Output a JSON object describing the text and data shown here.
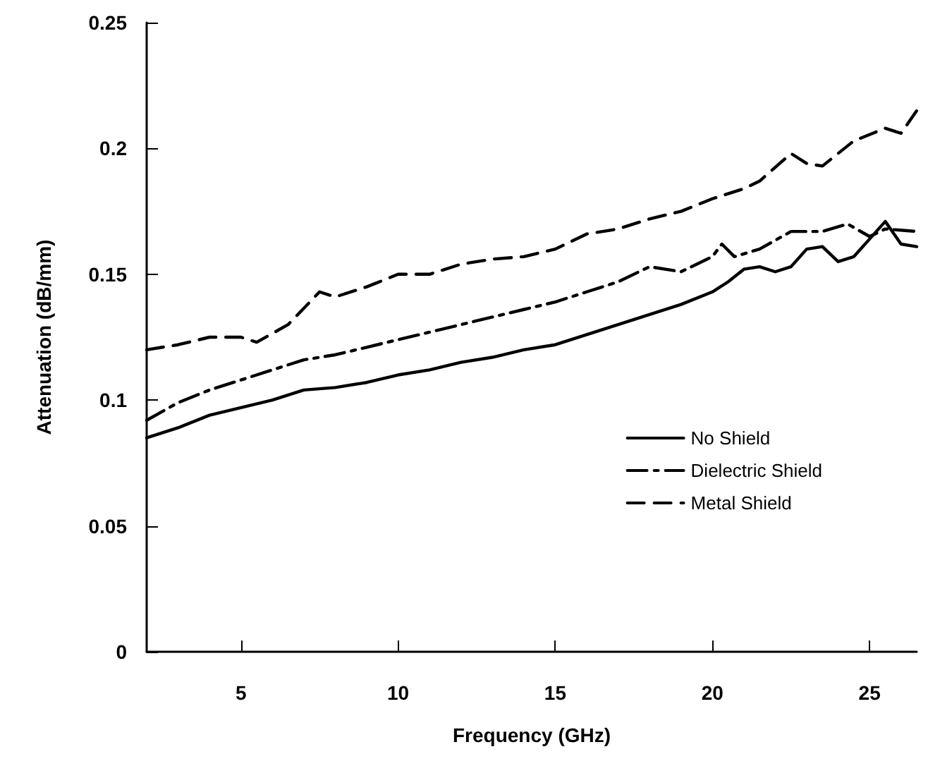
{
  "chart_data": {
    "type": "line",
    "xlabel": "Frequency (GHz)",
    "ylabel": "Attenuation (dB/mm)",
    "xlim": [
      2,
      26.5
    ],
    "xticks": [
      5,
      10,
      15,
      20,
      25
    ],
    "ylim": [
      0,
      0.25
    ],
    "yticks": [
      0,
      0.05,
      0.1,
      0.15,
      0.2,
      0.25
    ],
    "grid": false,
    "legend": "bottom right",
    "marker": "none",
    "series": [
      {
        "name": "No Shield",
        "color": "#000000",
        "line_style": "solid",
        "x": [
          2,
          3,
          4,
          5,
          6,
          7,
          8,
          9,
          10,
          11,
          12,
          13,
          14,
          15,
          16,
          17,
          18,
          19,
          20,
          20.5,
          21,
          21.5,
          22,
          22.5,
          23,
          23.5,
          24,
          24.5,
          25,
          25.5,
          26,
          26.5
        ],
        "values": [
          0.085,
          0.089,
          0.094,
          0.097,
          0.1,
          0.104,
          0.105,
          0.107,
          0.11,
          0.112,
          0.115,
          0.117,
          0.12,
          0.122,
          0.126,
          0.13,
          0.134,
          0.138,
          0.143,
          0.147,
          0.152,
          0.153,
          0.151,
          0.153,
          0.16,
          0.161,
          0.155,
          0.157,
          0.164,
          0.171,
          0.162,
          0.161
        ]
      },
      {
        "name": "Dielectric Shield",
        "color": "#000000",
        "line_style": "dashdot",
        "x": [
          2,
          3,
          4,
          5,
          6,
          7,
          8,
          9,
          10,
          11,
          12,
          13,
          14,
          15,
          16,
          17,
          18,
          19,
          20,
          20.3,
          20.7,
          21.5,
          22.5,
          23.5,
          24.3,
          25,
          25.5,
          26.5
        ],
        "values": [
          0.092,
          0.099,
          0.104,
          0.108,
          0.112,
          0.116,
          0.118,
          0.121,
          0.124,
          0.127,
          0.13,
          0.133,
          0.136,
          0.139,
          0.143,
          0.147,
          0.153,
          0.151,
          0.157,
          0.162,
          0.157,
          0.16,
          0.167,
          0.167,
          0.17,
          0.165,
          0.168,
          0.167
        ]
      },
      {
        "name": "Metal Shield",
        "color": "#000000",
        "line_style": "dashed",
        "x": [
          2,
          3,
          4,
          5,
          5.5,
          6.5,
          7.5,
          8,
          9,
          10,
          11,
          12,
          13,
          14,
          15,
          16,
          17,
          18,
          19,
          20,
          21,
          21.5,
          22.5,
          23,
          23.5,
          24.5,
          25.5,
          26,
          26.5
        ],
        "values": [
          0.12,
          0.122,
          0.125,
          0.125,
          0.123,
          0.13,
          0.143,
          0.141,
          0.145,
          0.15,
          0.15,
          0.154,
          0.156,
          0.157,
          0.16,
          0.166,
          0.168,
          0.172,
          0.175,
          0.18,
          0.184,
          0.187,
          0.198,
          0.194,
          0.193,
          0.203,
          0.208,
          0.206,
          0.215
        ]
      }
    ]
  }
}
